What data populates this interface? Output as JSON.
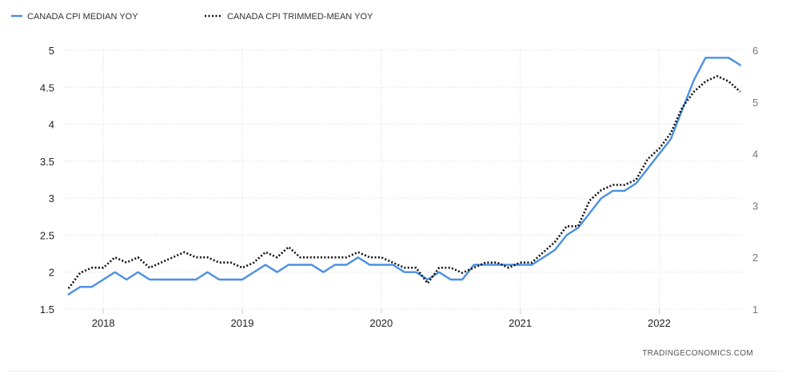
{
  "chart_data": {
    "type": "line",
    "title": "",
    "xlabel": "",
    "ylabel": "",
    "x_ticks": [
      "2018",
      "2019",
      "2020",
      "2021",
      "2022"
    ],
    "x_range": [
      "2017-10",
      "2022-08"
    ],
    "ylim_left": [
      1.5,
      5
    ],
    "ylim_right": [
      1,
      6
    ],
    "y_ticks_left": [
      "1.5",
      "2",
      "2.5",
      "3",
      "3.5",
      "4",
      "4.5",
      "5"
    ],
    "y_ticks_right": [
      "1",
      "2",
      "3",
      "4",
      "5",
      "6"
    ],
    "grid": true,
    "legend_position": "top-left",
    "series": [
      {
        "name": "CANADA CPI MEDIAN YOY",
        "axis": "left",
        "color": "#4a90e2",
        "style": "solid",
        "x": [
          "2017-10",
          "2017-11",
          "2017-12",
          "2018-01",
          "2018-02",
          "2018-03",
          "2018-04",
          "2018-05",
          "2018-06",
          "2018-07",
          "2018-08",
          "2018-09",
          "2018-10",
          "2018-11",
          "2018-12",
          "2019-01",
          "2019-02",
          "2019-03",
          "2019-04",
          "2019-05",
          "2019-06",
          "2019-07",
          "2019-08",
          "2019-09",
          "2019-10",
          "2019-11",
          "2019-12",
          "2020-01",
          "2020-02",
          "2020-03",
          "2020-04",
          "2020-05",
          "2020-06",
          "2020-07",
          "2020-08",
          "2020-09",
          "2020-10",
          "2020-11",
          "2020-12",
          "2021-01",
          "2021-02",
          "2021-03",
          "2021-04",
          "2021-05",
          "2021-06",
          "2021-07",
          "2021-08",
          "2021-09",
          "2021-10",
          "2021-11",
          "2021-12",
          "2022-01",
          "2022-02",
          "2022-03",
          "2022-04",
          "2022-05",
          "2022-06",
          "2022-07",
          "2022-08"
        ],
        "values": [
          1.7,
          1.8,
          1.8,
          1.9,
          2.0,
          1.9,
          2.0,
          1.9,
          1.9,
          1.9,
          1.9,
          1.9,
          2.0,
          1.9,
          1.9,
          1.9,
          2.0,
          2.1,
          2.0,
          2.1,
          2.1,
          2.1,
          2.0,
          2.1,
          2.1,
          2.2,
          2.1,
          2.1,
          2.1,
          2.0,
          2.0,
          1.9,
          2.0,
          1.9,
          1.9,
          2.1,
          2.1,
          2.1,
          2.1,
          2.1,
          2.1,
          2.2,
          2.3,
          2.5,
          2.6,
          2.8,
          3.0,
          3.1,
          3.1,
          3.2,
          3.4,
          3.6,
          3.8,
          4.2,
          4.6,
          4.9,
          4.9,
          4.9,
          4.8
        ]
      },
      {
        "name": "CANADA CPI TRIMMED-MEAN YOY",
        "axis": "right",
        "color": "#111111",
        "style": "dotted",
        "x": [
          "2017-10",
          "2017-11",
          "2017-12",
          "2018-01",
          "2018-02",
          "2018-03",
          "2018-04",
          "2018-05",
          "2018-06",
          "2018-07",
          "2018-08",
          "2018-09",
          "2018-10",
          "2018-11",
          "2018-12",
          "2019-01",
          "2019-02",
          "2019-03",
          "2019-04",
          "2019-05",
          "2019-06",
          "2019-07",
          "2019-08",
          "2019-09",
          "2019-10",
          "2019-11",
          "2019-12",
          "2020-01",
          "2020-02",
          "2020-03",
          "2020-04",
          "2020-05",
          "2020-06",
          "2020-07",
          "2020-08",
          "2020-09",
          "2020-10",
          "2020-11",
          "2020-12",
          "2021-01",
          "2021-02",
          "2021-03",
          "2021-04",
          "2021-05",
          "2021-06",
          "2021-07",
          "2021-08",
          "2021-09",
          "2021-10",
          "2021-11",
          "2021-12",
          "2022-01",
          "2022-02",
          "2022-03",
          "2022-04",
          "2022-05",
          "2022-06",
          "2022-07",
          "2022-08"
        ],
        "values": [
          1.4,
          1.7,
          1.8,
          1.8,
          2.0,
          1.9,
          2.0,
          1.8,
          1.9,
          2.0,
          2.1,
          2.0,
          2.0,
          1.9,
          1.9,
          1.8,
          1.9,
          2.1,
          2.0,
          2.2,
          2.0,
          2.0,
          2.0,
          2.0,
          2.0,
          2.1,
          2.0,
          2.0,
          1.9,
          1.8,
          1.8,
          1.5,
          1.8,
          1.8,
          1.7,
          1.8,
          1.9,
          1.9,
          1.8,
          1.9,
          1.9,
          2.1,
          2.3,
          2.6,
          2.6,
          3.1,
          3.3,
          3.4,
          3.4,
          3.5,
          3.9,
          4.1,
          4.4,
          4.9,
          5.2,
          5.4,
          5.5,
          5.4,
          5.2
        ]
      }
    ],
    "source": "TRADINGECONOMICS.COM"
  }
}
